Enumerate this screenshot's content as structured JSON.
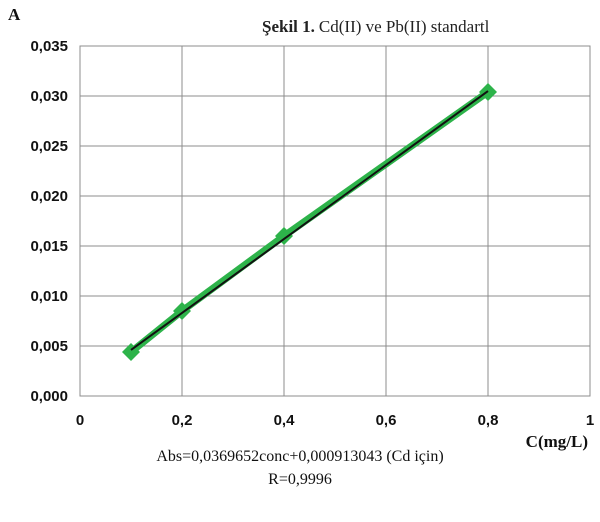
{
  "figure_caption": {
    "label": "Şekil 1.",
    "text": "Cd(II) ve Pb(II) standartl"
  },
  "chart_data": {
    "type": "line",
    "xlabel": "C(mg/L)",
    "ylabel": "A",
    "xlim": [
      0,
      1
    ],
    "ylim": [
      0,
      0.035
    ],
    "x_ticks": [
      "0",
      "0,2",
      "0,4",
      "0,6",
      "0,8",
      "1"
    ],
    "y_ticks": [
      "0,000",
      "0,005",
      "0,010",
      "0,015",
      "0,020",
      "0,025",
      "0,030",
      "0,035"
    ],
    "grid": true,
    "series": [
      {
        "x": [
          0.1,
          0.2,
          0.4,
          0.8
        ],
        "y": [
          0.0044,
          0.0085,
          0.016,
          0.0304
        ],
        "color": "#2db34a",
        "marker": "diamond"
      }
    ],
    "trendline": {
      "x": [
        0.1,
        0.8
      ],
      "y": [
        0.00461,
        0.03049
      ],
      "color": "#111111"
    },
    "equation": "Abs=0,0369652conc+0,000913043 (Cd için)",
    "r_value": "R=0,9996"
  }
}
